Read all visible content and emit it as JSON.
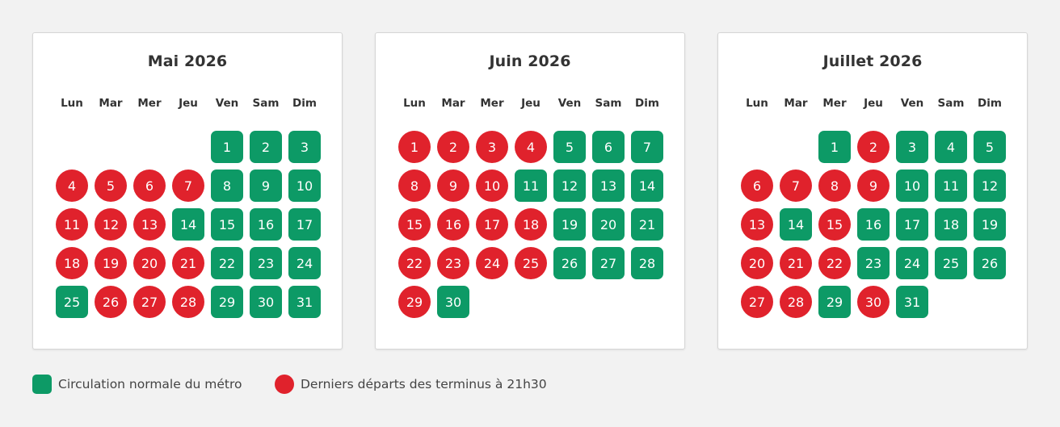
{
  "weekdays": [
    "Lun",
    "Mar",
    "Mer",
    "Jeu",
    "Ven",
    "Sam",
    "Dim"
  ],
  "status_colors": {
    "normal": "#0d9a66",
    "late": "#e0222c"
  },
  "calendars": [
    {
      "title": "Mai 2026",
      "first_weekday_index": 4,
      "late_days": [
        4,
        5,
        6,
        7,
        11,
        12,
        13,
        18,
        19,
        20,
        21,
        26,
        27,
        28
      ],
      "days": [
        "1",
        "2",
        "3",
        "4",
        "5",
        "6",
        "7",
        "8",
        "9",
        "10",
        "11",
        "12",
        "13",
        "14",
        "15",
        "16",
        "17",
        "18",
        "19",
        "20",
        "21",
        "22",
        "23",
        "24",
        "25",
        "26",
        "27",
        "28",
        "29",
        "30",
        "31"
      ]
    },
    {
      "title": "Juin 2026",
      "first_weekday_index": 0,
      "late_days": [
        1,
        2,
        3,
        4,
        8,
        9,
        10,
        15,
        16,
        17,
        18,
        22,
        23,
        24,
        25,
        29
      ],
      "days": [
        "1",
        "2",
        "3",
        "4",
        "5",
        "6",
        "7",
        "8",
        "9",
        "10",
        "11",
        "12",
        "13",
        "14",
        "15",
        "16",
        "17",
        "18",
        "19",
        "20",
        "21",
        "22",
        "23",
        "24",
        "25",
        "26",
        "27",
        "28",
        "29",
        "30"
      ]
    },
    {
      "title": "Juillet 2026",
      "first_weekday_index": 2,
      "late_days": [
        2,
        6,
        7,
        8,
        9,
        13,
        15,
        20,
        21,
        22,
        27,
        28,
        30
      ],
      "days": [
        "1",
        "2",
        "3",
        "4",
        "5",
        "6",
        "7",
        "8",
        "9",
        "10",
        "11",
        "12",
        "13",
        "14",
        "15",
        "16",
        "17",
        "18",
        "19",
        "20",
        "21",
        "22",
        "23",
        "24",
        "25",
        "26",
        "27",
        "28",
        "29",
        "30",
        "31"
      ]
    }
  ],
  "legend": [
    {
      "label": "Circulation normale du métro",
      "status": "normal"
    },
    {
      "label": "Derniers départs des terminus à 21h30",
      "status": "late"
    }
  ]
}
